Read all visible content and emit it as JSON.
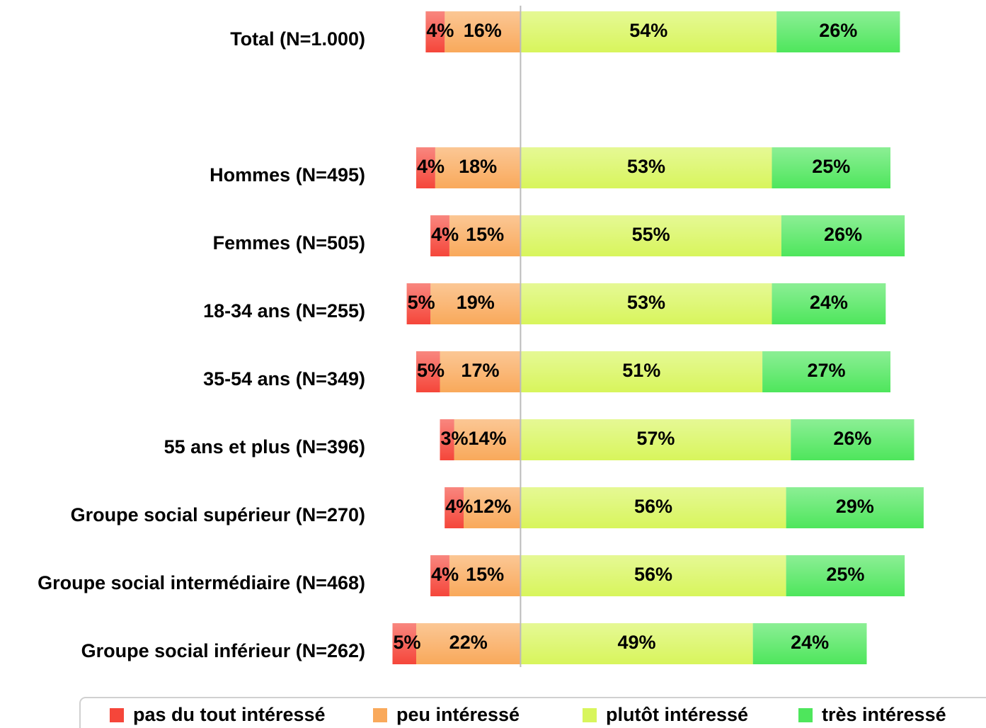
{
  "chart_data": {
    "type": "bar",
    "orientation": "horizontal",
    "stacked": true,
    "diverging_at": 2,
    "categories": [
      "Total (N=1.000)",
      null,
      "Hommes (N=495)",
      "Femmes (N=505)",
      "18-34 ans (N=255)",
      "35-54 ans (N=349)",
      "55 ans et plus (N=396)",
      "Groupe social supérieur (N=270)",
      "Groupe social intermédiaire (N=468)",
      "Groupe social inférieur (N=262)"
    ],
    "series": [
      {
        "name": "pas du tout intéressé",
        "color": "#f5463a",
        "values": [
          4,
          null,
          4,
          4,
          5,
          5,
          3,
          4,
          4,
          5
        ],
        "value_labels": [
          "4%",
          null,
          "4%",
          "4%",
          "5%",
          "5%",
          "3%",
          "4%",
          "4%",
          "5%"
        ]
      },
      {
        "name": "peu intéressé",
        "color": "#f9a95b",
        "values": [
          16,
          null,
          18,
          15,
          19,
          17,
          14,
          12,
          15,
          22
        ],
        "value_labels": [
          "16%",
          null,
          "18%",
          "15%",
          "19%",
          "17%",
          "14%",
          "12%",
          "15%",
          "22%"
        ]
      },
      {
        "name": "plutôt intéressé",
        "color": "#d8f55c",
        "values": [
          54,
          null,
          53,
          55,
          53,
          51,
          57,
          56,
          56,
          49
        ],
        "value_labels": [
          "54%",
          null,
          "53%",
          "55%",
          "53%",
          "51%",
          "57%",
          "56%",
          "56%",
          "49%"
        ]
      },
      {
        "name": "très intéressé",
        "color": "#4ee65c",
        "values": [
          26,
          null,
          25,
          26,
          24,
          27,
          26,
          29,
          25,
          24
        ],
        "value_labels": [
          "26%",
          null,
          "25%",
          "26%",
          "24%",
          "27%",
          "26%",
          "29%",
          "25%",
          "24%"
        ]
      }
    ],
    "xlim": [
      -32,
      98
    ],
    "legend": "bottom"
  }
}
